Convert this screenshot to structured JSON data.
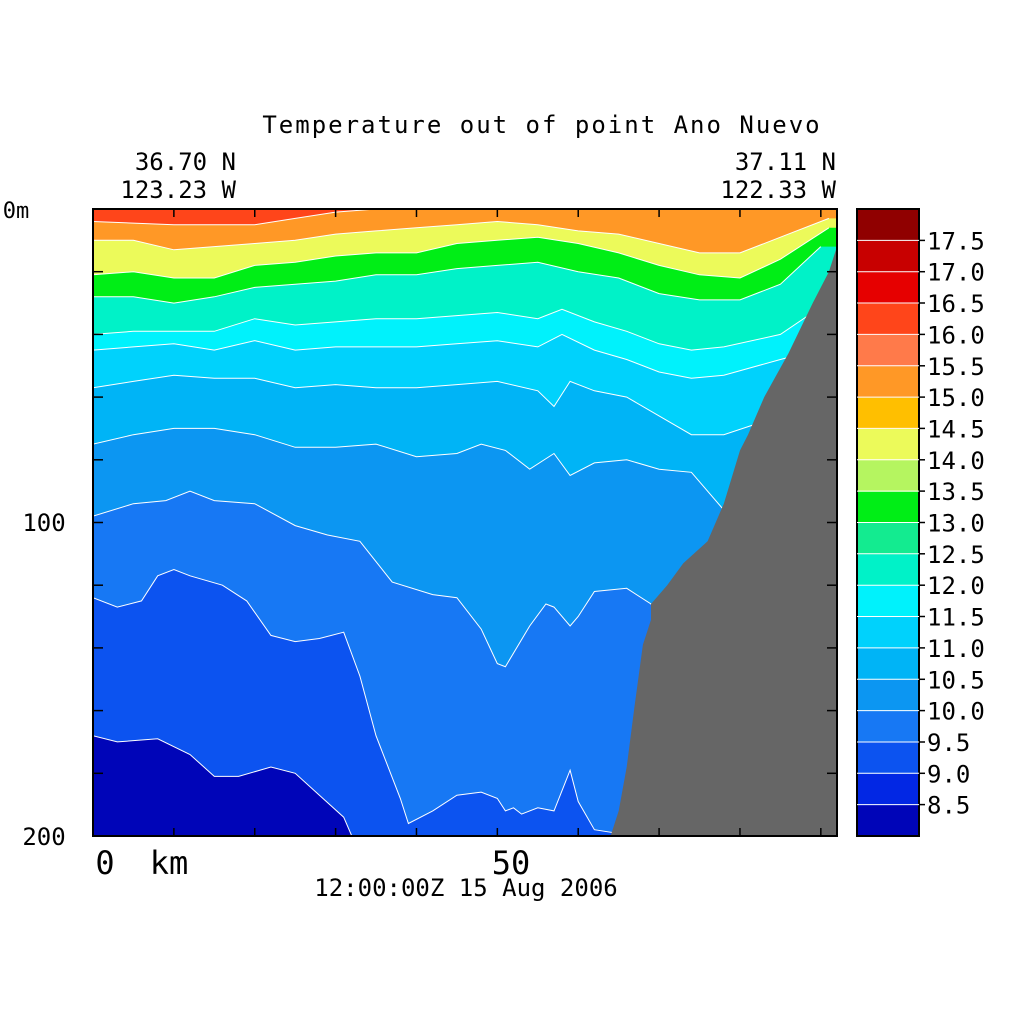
{
  "chart_data": {
    "type": "heatmap",
    "title": "Temperature out of point Ano Nuevo",
    "start_point": {
      "lat": "36.70 N",
      "lon": "123.23 W"
    },
    "end_point": {
      "lat": "37.11 N",
      "lon": "122.33 W"
    },
    "timestamp": "12:00:00Z  15 Aug 2006",
    "x_axis": {
      "unit_label": "km",
      "tick_labels": [
        "0",
        "50"
      ],
      "range": [
        0,
        92
      ]
    },
    "y_axis": {
      "tick_labels": [
        "0m",
        "100",
        "200"
      ],
      "range": [
        0,
        200
      ],
      "inverted": true
    },
    "color_levels": [
      8.5,
      9.0,
      9.5,
      10.0,
      10.5,
      11.0,
      11.5,
      12.0,
      12.5,
      13.0,
      13.5,
      14.0,
      14.5,
      15.0,
      15.5,
      16.0,
      16.5,
      17.0,
      17.5
    ],
    "colorbar_labels": [
      "17.5",
      "17.0",
      "16.5",
      "16.0",
      "15.5",
      "15.0",
      "14.5",
      "14.0",
      "13.5",
      "13.0",
      "12.5",
      "12.0",
      "11.5",
      "11.0",
      "10.5",
      "10.0",
      "9.5",
      "9.0",
      "8.5"
    ],
    "colors": [
      "#0005b8",
      "#0227e4",
      "#0c53f0",
      "#1778f4",
      "#0c96f2",
      "#00b4f6",
      "#00d2fc",
      "#00f2fc",
      "#00f2c8",
      "#13eb90",
      "#00ee16",
      "#b5f560",
      "#ecfa5a",
      "#ffbf00",
      "#ff9826",
      "#ff7a4a",
      "#ff451a",
      "#e60000",
      "#c80000",
      "#900000"
    ],
    "land_color": "#666666",
    "contours": [
      {
        "level": 9.0,
        "points": [
          [
            0,
            168
          ],
          [
            3,
            170
          ],
          [
            8,
            169
          ],
          [
            12,
            174
          ],
          [
            15,
            181
          ],
          [
            18,
            181
          ],
          [
            22,
            178
          ],
          [
            25,
            180
          ],
          [
            28,
            187
          ],
          [
            31,
            194
          ],
          [
            32,
            200
          ]
        ]
      },
      {
        "level": 9.5,
        "points": [
          [
            0,
            124
          ],
          [
            3,
            127
          ],
          [
            6,
            125
          ],
          [
            8,
            117
          ],
          [
            10,
            115
          ],
          [
            12,
            117
          ],
          [
            16,
            120
          ],
          [
            19,
            125
          ],
          [
            22,
            136
          ],
          [
            25,
            138
          ],
          [
            28,
            137
          ],
          [
            31,
            135
          ],
          [
            33,
            149
          ],
          [
            35,
            168
          ],
          [
            38,
            188
          ],
          [
            39,
            196
          ],
          [
            42,
            192
          ],
          [
            45,
            187
          ],
          [
            48,
            186
          ],
          [
            50,
            188
          ],
          [
            51,
            192
          ],
          [
            52,
            191
          ],
          [
            53,
            193
          ],
          [
            55,
            191
          ],
          [
            57,
            192
          ],
          [
            59,
            179
          ],
          [
            60,
            189
          ],
          [
            62,
            198
          ],
          [
            67,
            200
          ]
        ]
      },
      {
        "level": 10.0,
        "points": [
          [
            0,
            98
          ],
          [
            5,
            94
          ],
          [
            9,
            93
          ],
          [
            12,
            90
          ],
          [
            15,
            93
          ],
          [
            20,
            94
          ],
          [
            25,
            101
          ],
          [
            29,
            104
          ],
          [
            33,
            106
          ],
          [
            37,
            119
          ],
          [
            42,
            123
          ],
          [
            45,
            124
          ],
          [
            48,
            134
          ],
          [
            50,
            145
          ],
          [
            51,
            146
          ],
          [
            54,
            133
          ],
          [
            56,
            126
          ],
          [
            57,
            127
          ],
          [
            59,
            133
          ],
          [
            60,
            130
          ],
          [
            62,
            122
          ],
          [
            66,
            121
          ],
          [
            69,
            126
          ],
          [
            70,
            131
          ]
        ]
      },
      {
        "level": 10.5,
        "points": [
          [
            0,
            75
          ],
          [
            5,
            72
          ],
          [
            10,
            70
          ],
          [
            15,
            70
          ],
          [
            20,
            72
          ],
          [
            25,
            76
          ],
          [
            30,
            76
          ],
          [
            35,
            75
          ],
          [
            40,
            79
          ],
          [
            45,
            78
          ],
          [
            48,
            75
          ],
          [
            51,
            77
          ],
          [
            54,
            83
          ],
          [
            57,
            78
          ],
          [
            59,
            85
          ],
          [
            62,
            81
          ],
          [
            66,
            80
          ],
          [
            70,
            83
          ],
          [
            74,
            84
          ],
          [
            78,
            96
          ],
          [
            81,
            100
          ]
        ]
      },
      {
        "level": 11.0,
        "points": [
          [
            0,
            57
          ],
          [
            5,
            55
          ],
          [
            10,
            53
          ],
          [
            15,
            54
          ],
          [
            20,
            54
          ],
          [
            25,
            57
          ],
          [
            30,
            56
          ],
          [
            35,
            57
          ],
          [
            40,
            57
          ],
          [
            45,
            56
          ],
          [
            50,
            55
          ],
          [
            55,
            58
          ],
          [
            57,
            63
          ],
          [
            59,
            55
          ],
          [
            62,
            58
          ],
          [
            66,
            60
          ],
          [
            70,
            66
          ],
          [
            74,
            72
          ],
          [
            78,
            72
          ],
          [
            85,
            66
          ]
        ]
      },
      {
        "level": 11.5,
        "points": [
          [
            0,
            45
          ],
          [
            5,
            44
          ],
          [
            10,
            43
          ],
          [
            15,
            45
          ],
          [
            20,
            42
          ],
          [
            25,
            45
          ],
          [
            30,
            44
          ],
          [
            35,
            44
          ],
          [
            40,
            44
          ],
          [
            45,
            43
          ],
          [
            50,
            42
          ],
          [
            55,
            44
          ],
          [
            58,
            40
          ],
          [
            62,
            45
          ],
          [
            66,
            48
          ],
          [
            70,
            52
          ],
          [
            74,
            54
          ],
          [
            78,
            53
          ],
          [
            85,
            48
          ],
          [
            88,
            46
          ]
        ]
      },
      {
        "level": 12.0,
        "points": [
          [
            0,
            40
          ],
          [
            5,
            39
          ],
          [
            10,
            39
          ],
          [
            15,
            39
          ],
          [
            20,
            35
          ],
          [
            25,
            37
          ],
          [
            30,
            36
          ],
          [
            35,
            35
          ],
          [
            40,
            35
          ],
          [
            45,
            34
          ],
          [
            50,
            33
          ],
          [
            55,
            35
          ],
          [
            58,
            32
          ],
          [
            62,
            36
          ],
          [
            66,
            39
          ],
          [
            70,
            43
          ],
          [
            74,
            45
          ],
          [
            78,
            44
          ],
          [
            85,
            40
          ],
          [
            89,
            33
          ]
        ]
      },
      {
        "level": 13.0,
        "points": [
          [
            0,
            28
          ],
          [
            5,
            28
          ],
          [
            10,
            30
          ],
          [
            15,
            28
          ],
          [
            20,
            25
          ],
          [
            25,
            24
          ],
          [
            30,
            23
          ],
          [
            35,
            21
          ],
          [
            40,
            21
          ],
          [
            45,
            19
          ],
          [
            50,
            18
          ],
          [
            55,
            17
          ],
          [
            60,
            20
          ],
          [
            65,
            22
          ],
          [
            70,
            27
          ],
          [
            75,
            29
          ],
          [
            80,
            29
          ],
          [
            85,
            24
          ],
          [
            90,
            12
          ]
        ]
      },
      {
        "level": 14.0,
        "points": [
          [
            0,
            21
          ],
          [
            5,
            20
          ],
          [
            10,
            22
          ],
          [
            15,
            22
          ],
          [
            20,
            18
          ],
          [
            25,
            17
          ],
          [
            30,
            15
          ],
          [
            35,
            14
          ],
          [
            40,
            14
          ],
          [
            45,
            11
          ],
          [
            50,
            10
          ],
          [
            55,
            9
          ],
          [
            60,
            11
          ],
          [
            65,
            14
          ],
          [
            70,
            18
          ],
          [
            75,
            21
          ],
          [
            80,
            22
          ],
          [
            85,
            16
          ],
          [
            91,
            6
          ]
        ]
      },
      {
        "level": 15.0,
        "points": [
          [
            0,
            10
          ],
          [
            5,
            10
          ],
          [
            10,
            13
          ],
          [
            15,
            12
          ],
          [
            20,
            11
          ],
          [
            25,
            10
          ],
          [
            30,
            8
          ],
          [
            35,
            7
          ],
          [
            40,
            6
          ],
          [
            45,
            5
          ],
          [
            50,
            4
          ],
          [
            55,
            5
          ],
          [
            60,
            7
          ],
          [
            65,
            8
          ],
          [
            70,
            11
          ],
          [
            75,
            14
          ],
          [
            80,
            14
          ],
          [
            85,
            9
          ],
          [
            91,
            3
          ]
        ]
      },
      {
        "level": 16.0,
        "points": [
          [
            0,
            4
          ],
          [
            10,
            5
          ],
          [
            20,
            5
          ],
          [
            25,
            3
          ],
          [
            30,
            1
          ],
          [
            35,
            0
          ]
        ]
      }
    ],
    "bottom_profile": [
      [
        92,
        12
      ],
      [
        91,
        20
      ],
      [
        89,
        30
      ],
      [
        86,
        46
      ],
      [
        83,
        60
      ],
      [
        81,
        72
      ],
      [
        80,
        77
      ],
      [
        78,
        94
      ],
      [
        76,
        106
      ],
      [
        73,
        113
      ],
      [
        71,
        120
      ],
      [
        69,
        126
      ],
      [
        69,
        131
      ],
      [
        68,
        139
      ],
      [
        67,
        158
      ],
      [
        66,
        178
      ],
      [
        65,
        192
      ],
      [
        64,
        200
      ]
    ]
  }
}
